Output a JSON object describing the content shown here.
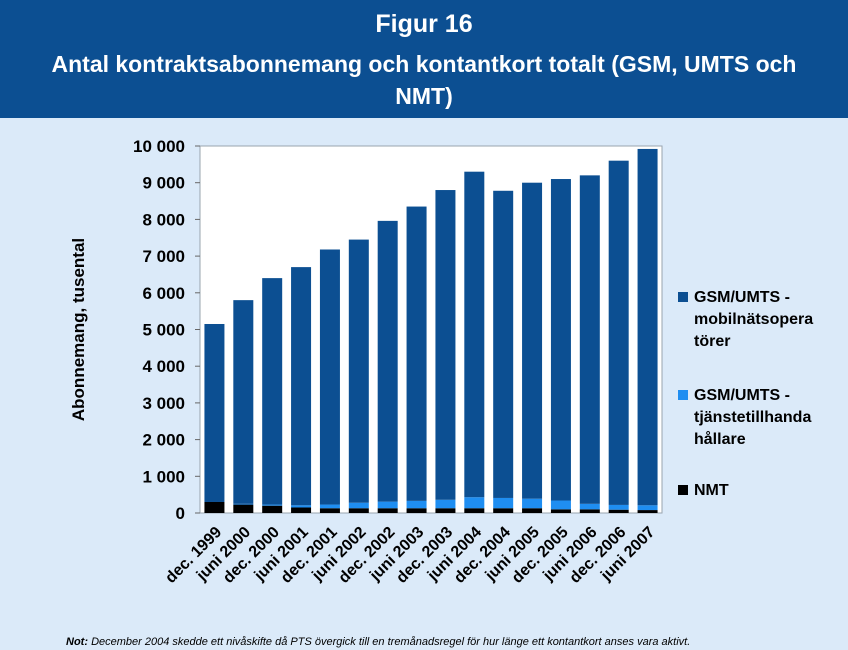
{
  "header": {
    "figure_label": "Figur 16",
    "title": "Antal kontraktsabonnemang och kontantkort totalt (GSM, UMTS och NMT)"
  },
  "chart_data": {
    "type": "bar",
    "stacked": true,
    "ylabel": "Abonnemang, tusental",
    "ylim": [
      0,
      10000
    ],
    "yticks": [
      "0",
      "1 000",
      "2 000",
      "3 000",
      "4 000",
      "5 000",
      "6 000",
      "7 000",
      "8 000",
      "9 000",
      "10 000"
    ],
    "grid": false,
    "legend_position": "right",
    "categories": [
      "dec. 1999",
      "juni 2000",
      "dec. 2000",
      "juni 2001",
      "dec. 2001",
      "juni 2002",
      "dec. 2002",
      "juni 2003",
      "dec. 2003",
      "juni 2004",
      "dec. 2004",
      "juni 2005",
      "dec. 2005",
      "juni 2006",
      "dec. 2006",
      "juni 2007"
    ],
    "series": [
      {
        "name": "NMT",
        "color": "#000000",
        "values": [
          300,
          230,
          200,
          150,
          130,
          130,
          130,
          130,
          130,
          130,
          130,
          130,
          100,
          100,
          90,
          80
        ]
      },
      {
        "name": "GSM/UMTS - tjänstetillhandahållare",
        "legend_lines": [
          "GSM/UMTS -",
          "tjänstetillhanda",
          "hållare"
        ],
        "color": "#1f8ef1",
        "values": [
          0,
          20,
          30,
          60,
          100,
          150,
          180,
          200,
          230,
          300,
          280,
          260,
          240,
          150,
          130,
          130
        ]
      },
      {
        "name": "GSM/UMTS - mobilnätsoperatörer",
        "legend_lines": [
          "GSM/UMTS -",
          "mobilnätsopera",
          "törer"
        ],
        "color": "#0c4f92",
        "values": [
          4850,
          5550,
          6170,
          6490,
          6950,
          7170,
          7650,
          8020,
          8440,
          8870,
          8370,
          8610,
          8760,
          8950,
          9380,
          9710
        ]
      }
    ]
  },
  "note": {
    "label": "Not:",
    "text": "December 2004 skedde ett nivåskifte då PTS övergick till en tremånadsregel för hur länge ett kontantkort anses vara aktivt."
  }
}
